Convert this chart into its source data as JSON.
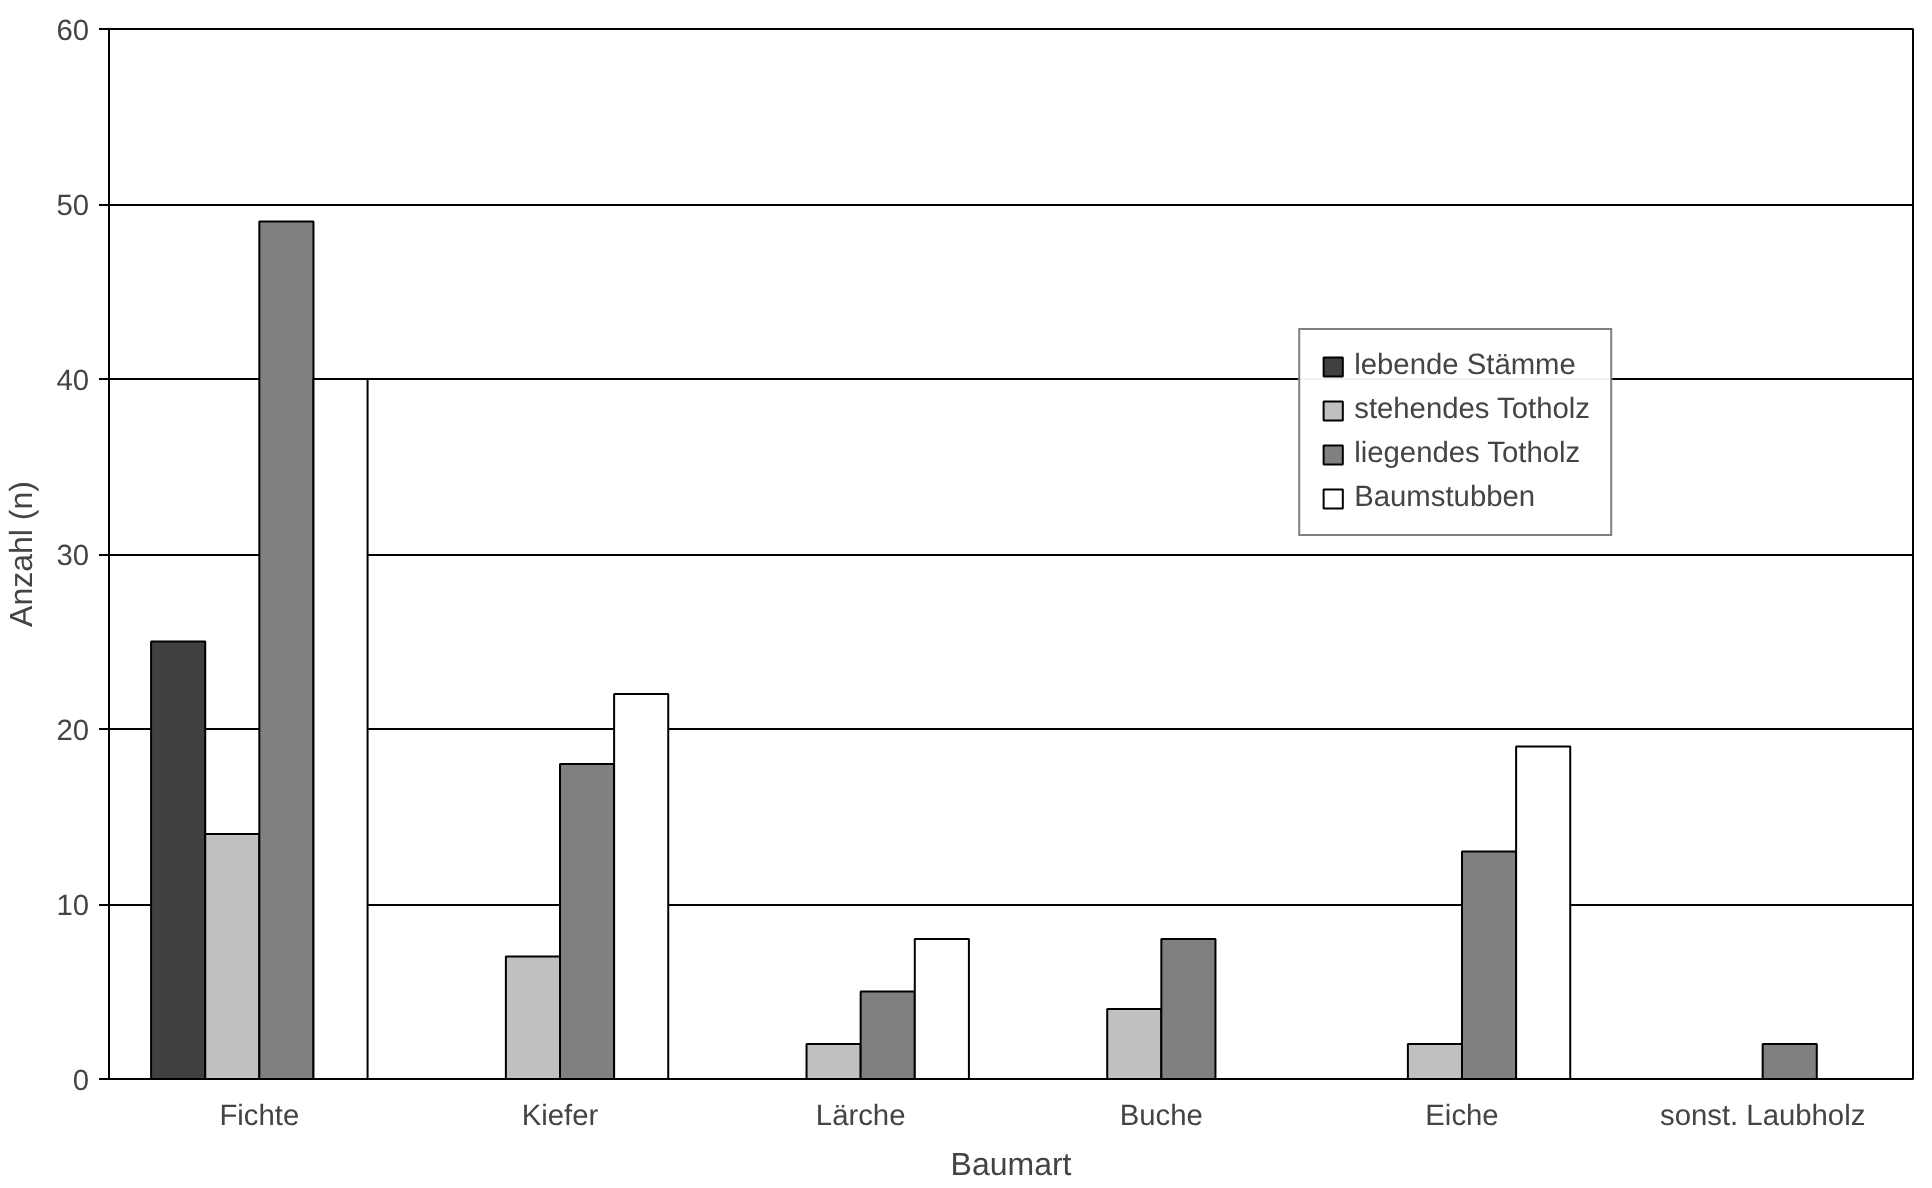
{
  "chart_data": {
    "type": "bar",
    "xlabel": "Baumart",
    "ylabel": "Anzahl (n)",
    "categories": [
      "Fichte",
      "Kiefer",
      "Lärche",
      "Buche",
      "Eiche",
      "sonst. Laubholz"
    ],
    "series": [
      {
        "name": "lebende Stämme",
        "color": "#404040",
        "values": [
          25,
          null,
          null,
          null,
          null,
          null
        ]
      },
      {
        "name": "stehendes Totholz",
        "color": "#c0c0c0",
        "values": [
          14,
          7,
          2,
          4,
          2,
          null
        ]
      },
      {
        "name": "liegendes Totholz",
        "color": "#808080",
        "values": [
          49,
          18,
          5,
          8,
          13,
          2
        ]
      },
      {
        "name": "Baumstubben",
        "color": "#ffffff",
        "values": [
          40,
          22,
          8,
          null,
          19,
          null
        ]
      }
    ],
    "ylim": [
      0,
      60
    ],
    "yticks": [
      0,
      10,
      20,
      30,
      40,
      50,
      60
    ],
    "grid": "y",
    "legend": "top right"
  }
}
